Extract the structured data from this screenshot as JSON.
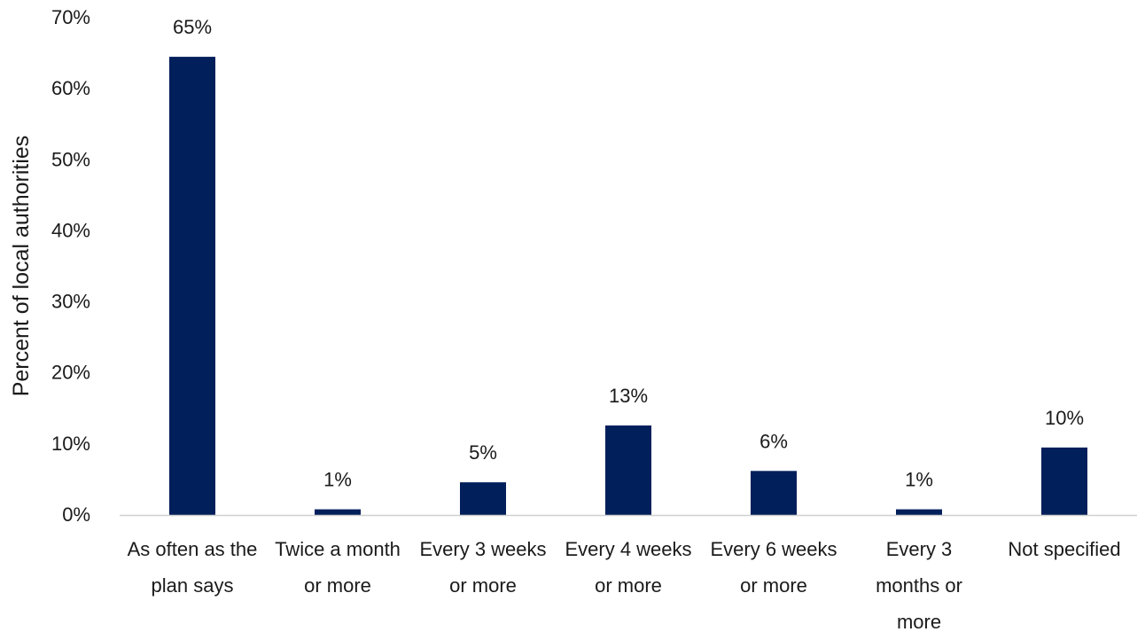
{
  "chart_data": {
    "type": "bar",
    "title": "",
    "xlabel": "",
    "ylabel": "Percent of local authorities",
    "ylim": [
      0,
      70
    ],
    "yticks": [
      "0%",
      "10%",
      "20%",
      "30%",
      "40%",
      "50%",
      "60%",
      "70%"
    ],
    "ytick_values": [
      0,
      10,
      20,
      30,
      40,
      50,
      60,
      70
    ],
    "categories": [
      [
        "As often as the",
        "plan says"
      ],
      [
        "Twice a month",
        "or more"
      ],
      [
        "Every 3 weeks",
        "or more"
      ],
      [
        "Every 4 weeks",
        "or more"
      ],
      [
        "Every 6 weeks",
        "or more"
      ],
      [
        "Every 3",
        "months or",
        "more"
      ],
      [
        "Not specified"
      ]
    ],
    "values": [
      64.5,
      0.8,
      4.6,
      12.6,
      6.2,
      0.8,
      9.5
    ],
    "data_labels": [
      "65%",
      "1%",
      "5%",
      "13%",
      "6%",
      "1%",
      "10%"
    ],
    "grid": false,
    "legend": "none",
    "colors": {
      "bar": "#001f5b",
      "axis": "#d0d0d0",
      "text": "#1a1a1a"
    }
  }
}
